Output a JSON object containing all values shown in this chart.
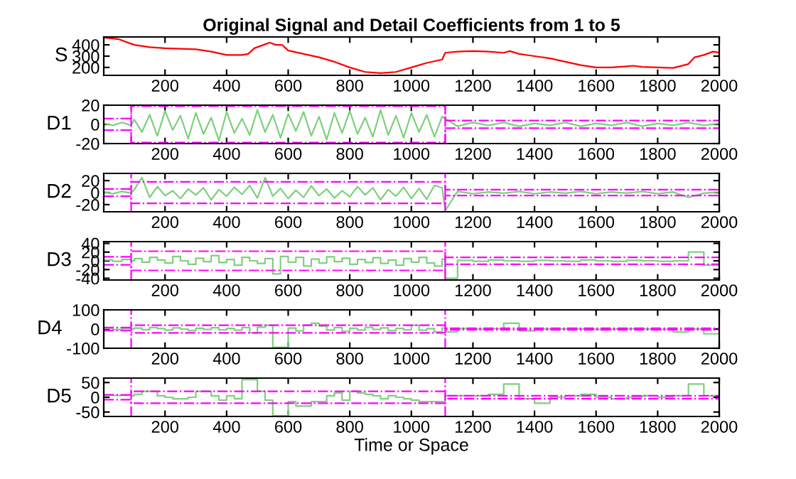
{
  "chart_data": [
    {
      "type": "line",
      "title": "Original Signal and Detail Coefficients from 1 to 5",
      "ylabel": "S",
      "xlim": [
        1,
        2000
      ],
      "ylim": [
        130,
        470
      ],
      "xticks": [
        200,
        400,
        600,
        800,
        1000,
        1200,
        1400,
        1600,
        1800,
        2000
      ],
      "yticks": [
        200,
        300,
        400
      ],
      "series": [
        {
          "color": "#ff0000",
          "line_style": "solid",
          "x": [
            1,
            50,
            100,
            150,
            200,
            250,
            300,
            350,
            400,
            450,
            470,
            490,
            520,
            540,
            560,
            580,
            600,
            650,
            700,
            750,
            800,
            850,
            900,
            950,
            1000,
            1050,
            1100,
            1110,
            1150,
            1200,
            1250,
            1300,
            1320,
            1350,
            1400,
            1450,
            1500,
            1550,
            1600,
            1650,
            1700,
            1720,
            1750,
            1800,
            1850,
            1900,
            1920,
            1950,
            1980,
            2000
          ],
          "values": [
            465,
            450,
            400,
            380,
            370,
            365,
            360,
            340,
            310,
            310,
            320,
            370,
            400,
            420,
            400,
            400,
            350,
            320,
            290,
            250,
            200,
            160,
            150,
            160,
            200,
            240,
            270,
            330,
            340,
            345,
            340,
            330,
            345,
            320,
            300,
            280,
            250,
            220,
            200,
            200,
            210,
            215,
            205,
            200,
            195,
            230,
            290,
            310,
            340,
            330
          ]
        }
      ]
    },
    {
      "type": "line",
      "ylabel": "D1",
      "xlim": [
        1,
        2000
      ],
      "ylim": [
        -20,
        20
      ],
      "xticks": [
        200,
        400,
        600,
        800,
        1000,
        1200,
        1400,
        1600,
        1800,
        2000
      ],
      "yticks": [
        -20,
        0,
        20
      ],
      "x": [
        1,
        30,
        60,
        90,
        100,
        125,
        150,
        175,
        200,
        225,
        250,
        275,
        300,
        325,
        350,
        375,
        400,
        425,
        450,
        475,
        500,
        525,
        550,
        575,
        600,
        625,
        650,
        675,
        700,
        725,
        750,
        775,
        800,
        825,
        850,
        875,
        900,
        925,
        950,
        975,
        1000,
        1025,
        1050,
        1075,
        1100,
        1110,
        1150,
        1200,
        1250,
        1300,
        1350,
        1400,
        1450,
        1500,
        1550,
        1600,
        1650,
        1700,
        1750,
        1800,
        1850,
        1900,
        1950,
        2000
      ],
      "series": [
        {
          "color": "#7fcf7f",
          "line_style": "solid",
          "values": [
            1,
            -1,
            2,
            -1,
            5,
            -8,
            10,
            -12,
            14,
            -6,
            9,
            -15,
            12,
            -10,
            7,
            -17,
            13,
            -9,
            6,
            -11,
            15,
            -8,
            10,
            -14,
            11,
            -7,
            13,
            -12,
            8,
            -16,
            12,
            -9,
            14,
            -10,
            7,
            -13,
            15,
            -11,
            9,
            -14,
            12,
            -8,
            10,
            -13,
            8,
            6,
            -2,
            2,
            -1,
            2,
            -2,
            1,
            -1,
            2,
            -2,
            1,
            -1,
            2,
            -2,
            1,
            -1,
            2,
            -1,
            1
          ]
        },
        {
          "color": "#ff00ff",
          "line_style": "dashdot",
          "x": [
            1,
            90,
            90,
            1110,
            1110,
            2000
          ],
          "values": [
            6,
            6,
            19,
            19,
            4,
            4
          ]
        },
        {
          "color": "#ff00ff",
          "line_style": "dashdot",
          "x": [
            1,
            90,
            90,
            1110,
            1110,
            2000
          ],
          "values": [
            -6,
            -6,
            -19,
            -19,
            -4,
            -4
          ]
        }
      ],
      "ref_lines": [
        {
          "axis": "x",
          "value": 90,
          "color": "#ff00ff",
          "line_style": "dashdot"
        },
        {
          "axis": "x",
          "value": 1110,
          "color": "#ff00ff",
          "line_style": "dashdot"
        }
      ]
    },
    {
      "type": "line",
      "ylabel": "D2",
      "xlim": [
        1,
        2000
      ],
      "ylim": [
        -32,
        32
      ],
      "xticks": [
        200,
        400,
        600,
        800,
        1000,
        1200,
        1400,
        1600,
        1800,
        2000
      ],
      "yticks": [
        -20,
        0,
        20
      ],
      "x": [
        1,
        30,
        60,
        90,
        100,
        125,
        150,
        175,
        200,
        225,
        250,
        275,
        300,
        325,
        350,
        375,
        400,
        425,
        450,
        475,
        500,
        525,
        550,
        575,
        600,
        625,
        650,
        675,
        700,
        725,
        750,
        775,
        800,
        825,
        850,
        875,
        900,
        925,
        950,
        975,
        1000,
        1025,
        1050,
        1075,
        1100,
        1110,
        1150,
        1200,
        1250,
        1300,
        1350,
        1400,
        1450,
        1500,
        1550,
        1600,
        1650,
        1700,
        1750,
        1800,
        1850,
        1900,
        1950,
        2000
      ],
      "series": [
        {
          "color": "#7fcf7f",
          "line_style": "solid",
          "values": [
            1,
            -2,
            2,
            -1,
            5,
            25,
            -8,
            10,
            -5,
            3,
            -10,
            6,
            -4,
            8,
            -12,
            5,
            -6,
            9,
            -3,
            12,
            -9,
            25,
            -6,
            7,
            -10,
            4,
            -8,
            11,
            -5,
            6,
            -9,
            3,
            -7,
            10,
            -4,
            8,
            -12,
            5,
            -6,
            9,
            -10,
            7,
            -11,
            12,
            8,
            -30,
            2,
            -2,
            1,
            -1,
            2,
            -2,
            1,
            -1,
            2,
            -2,
            1,
            -1,
            2,
            -2,
            1,
            -8,
            -1,
            1
          ]
        },
        {
          "color": "#ff00ff",
          "line_style": "dashdot",
          "x": [
            1,
            90,
            90,
            1110,
            1110,
            2000
          ],
          "values": [
            6,
            6,
            18,
            18,
            5,
            5
          ]
        },
        {
          "color": "#ff00ff",
          "line_style": "dashdot",
          "x": [
            1,
            90,
            90,
            1110,
            1110,
            2000
          ],
          "values": [
            -6,
            -6,
            -18,
            -18,
            -5,
            -5
          ]
        }
      ],
      "ref_lines": [
        {
          "axis": "x",
          "value": 90,
          "color": "#ff00ff",
          "line_style": "dashdot"
        },
        {
          "axis": "x",
          "value": 1110,
          "color": "#ff00ff",
          "line_style": "dashdot"
        }
      ]
    },
    {
      "type": "step",
      "ylabel": "D3",
      "xlim": [
        1,
        2000
      ],
      "ylim": [
        -44,
        44
      ],
      "xticks": [
        200,
        400,
        600,
        800,
        1000,
        1200,
        1400,
        1600,
        1800,
        2000
      ],
      "yticks": [
        -40,
        -20,
        0,
        20,
        40
      ],
      "x": [
        1,
        30,
        60,
        90,
        100,
        125,
        150,
        175,
        200,
        225,
        250,
        275,
        300,
        325,
        350,
        375,
        400,
        425,
        450,
        475,
        500,
        525,
        550,
        575,
        600,
        625,
        650,
        675,
        700,
        725,
        750,
        775,
        800,
        825,
        850,
        875,
        900,
        925,
        950,
        975,
        1000,
        1025,
        1050,
        1075,
        1100,
        1110,
        1150,
        1200,
        1250,
        1300,
        1350,
        1400,
        1450,
        1500,
        1550,
        1600,
        1650,
        1700,
        1750,
        1800,
        1850,
        1900,
        1950,
        2000
      ],
      "series": [
        {
          "color": "#7fcf7f",
          "line_style": "solid",
          "values": [
            2,
            -1,
            3,
            0,
            5,
            -3,
            8,
            2,
            -5,
            10,
            0,
            -8,
            6,
            -2,
            12,
            -4,
            3,
            -10,
            8,
            0,
            -6,
            5,
            -30,
            10,
            -3,
            8,
            -12,
            4,
            -5,
            9,
            -2,
            6,
            -8,
            3,
            -4,
            7,
            -6,
            2,
            -10,
            5,
            -3,
            8,
            -5,
            -12,
            4,
            -40,
            1,
            -1,
            2,
            0,
            -1,
            1,
            0,
            -1,
            2,
            0,
            -1,
            1,
            0,
            -1,
            0,
            20,
            -10,
            0
          ]
        },
        {
          "type": "line",
          "color": "#ff00ff",
          "line_style": "dashdot",
          "x": [
            1,
            90,
            90,
            1110,
            1110,
            2000
          ],
          "values": [
            9,
            9,
            22,
            22,
            8,
            8
          ]
        },
        {
          "type": "line",
          "color": "#ff00ff",
          "line_style": "dashdot",
          "x": [
            1,
            90,
            90,
            1110,
            1110,
            2000
          ],
          "values": [
            -9,
            -9,
            -22,
            -22,
            -8,
            -8
          ]
        }
      ],
      "ref_lines": [
        {
          "axis": "x",
          "value": 90,
          "color": "#ff00ff",
          "line_style": "dashdot"
        },
        {
          "axis": "x",
          "value": 1110,
          "color": "#ff00ff",
          "line_style": "dashdot"
        }
      ]
    },
    {
      "type": "step",
      "ylabel": "D4",
      "xlim": [
        1,
        2000
      ],
      "ylim": [
        -100,
        100
      ],
      "xticks": [
        200,
        400,
        600,
        800,
        1000,
        1200,
        1400,
        1600,
        1800,
        2000
      ],
      "yticks": [
        -100,
        0,
        100
      ],
      "x": [
        1,
        30,
        60,
        90,
        100,
        125,
        150,
        175,
        200,
        225,
        250,
        275,
        300,
        325,
        350,
        375,
        400,
        425,
        450,
        475,
        500,
        525,
        550,
        575,
        600,
        625,
        650,
        675,
        700,
        725,
        750,
        775,
        800,
        825,
        850,
        875,
        900,
        925,
        950,
        975,
        1000,
        1025,
        1050,
        1075,
        1100,
        1110,
        1150,
        1200,
        1250,
        1300,
        1350,
        1400,
        1450,
        1500,
        1550,
        1600,
        1650,
        1700,
        1750,
        1800,
        1850,
        1900,
        1950,
        2000
      ],
      "series": [
        {
          "color": "#7fcf7f",
          "line_style": "solid",
          "values": [
            3,
            -2,
            2,
            0,
            5,
            -3,
            8,
            2,
            -5,
            6,
            0,
            -8,
            4,
            -2,
            7,
            -4,
            3,
            -6,
            8,
            -20,
            10,
            20,
            -95,
            -95,
            5,
            -10,
            20,
            30,
            15,
            -5,
            8,
            -12,
            4,
            -5,
            9,
            -2,
            6,
            -8,
            3,
            -4,
            20,
            -6,
            2,
            -15,
            5,
            -15,
            2,
            0,
            1,
            30,
            -10,
            0,
            0,
            1,
            0,
            -1,
            0,
            1,
            0,
            -1,
            -15,
            0,
            -25,
            0
          ]
        },
        {
          "type": "line",
          "color": "#ff00ff",
          "line_style": "dashdot",
          "x": [
            1,
            90,
            90,
            1110,
            1110,
            2000
          ],
          "values": [
            8,
            8,
            20,
            20,
            4,
            4
          ]
        },
        {
          "type": "line",
          "color": "#ff00ff",
          "line_style": "dashdot",
          "x": [
            1,
            90,
            90,
            1110,
            1110,
            2000
          ],
          "values": [
            -8,
            -8,
            -20,
            -20,
            -4,
            -4
          ]
        }
      ],
      "ref_lines": [
        {
          "axis": "x",
          "value": 90,
          "color": "#ff00ff",
          "line_style": "dashdot"
        },
        {
          "axis": "x",
          "value": 1110,
          "color": "#ff00ff",
          "line_style": "dashdot"
        }
      ]
    },
    {
      "type": "step",
      "ylabel": "D5",
      "xlabel": "Time or Space",
      "xlim": [
        1,
        2000
      ],
      "ylim": [
        -65,
        65
      ],
      "xticks": [
        200,
        400,
        600,
        800,
        1000,
        1200,
        1400,
        1600,
        1800,
        2000
      ],
      "yticks": [
        -50,
        0,
        50
      ],
      "x": [
        1,
        30,
        60,
        90,
        100,
        125,
        150,
        175,
        200,
        225,
        250,
        275,
        300,
        325,
        350,
        375,
        400,
        425,
        450,
        475,
        500,
        525,
        550,
        575,
        600,
        625,
        650,
        675,
        700,
        725,
        750,
        775,
        800,
        825,
        850,
        875,
        900,
        925,
        950,
        975,
        1000,
        1025,
        1050,
        1075,
        1100,
        1110,
        1150,
        1200,
        1250,
        1300,
        1350,
        1400,
        1450,
        1500,
        1550,
        1600,
        1650,
        1700,
        1750,
        1800,
        1850,
        1900,
        1950,
        2000
      ],
      "series": [
        {
          "color": "#7fcf7f",
          "line_style": "solid",
          "values": [
            8,
            6,
            7,
            5,
            10,
            20,
            20,
            5,
            0,
            -5,
            -5,
            0,
            20,
            20,
            5,
            -10,
            5,
            -5,
            60,
            60,
            20,
            -10,
            -62,
            -62,
            -15,
            -30,
            -30,
            -15,
            -15,
            5,
            15,
            -10,
            20,
            15,
            10,
            5,
            -5,
            5,
            0,
            -5,
            -10,
            -15,
            -15,
            -15,
            -15,
            5,
            5,
            5,
            10,
            45,
            -5,
            -20,
            0,
            5,
            10,
            0,
            -5,
            0,
            5,
            0,
            5,
            45,
            5,
            15
          ]
        },
        {
          "type": "line",
          "color": "#ff00ff",
          "line_style": "dashdot",
          "x": [
            1,
            90,
            90,
            1110,
            1110,
            2000
          ],
          "values": [
            8,
            8,
            20,
            20,
            5,
            5
          ]
        },
        {
          "type": "line",
          "color": "#ff00ff",
          "line_style": "dashdot",
          "x": [
            1,
            90,
            90,
            1110,
            1110,
            2000
          ],
          "values": [
            -8,
            -8,
            -20,
            -20,
            -5,
            -5
          ]
        }
      ],
      "ref_lines": [
        {
          "axis": "x",
          "value": 90,
          "color": "#ff00ff",
          "line_style": "dashdot"
        },
        {
          "axis": "x",
          "value": 1110,
          "color": "#ff00ff",
          "line_style": "dashdot"
        }
      ]
    }
  ]
}
